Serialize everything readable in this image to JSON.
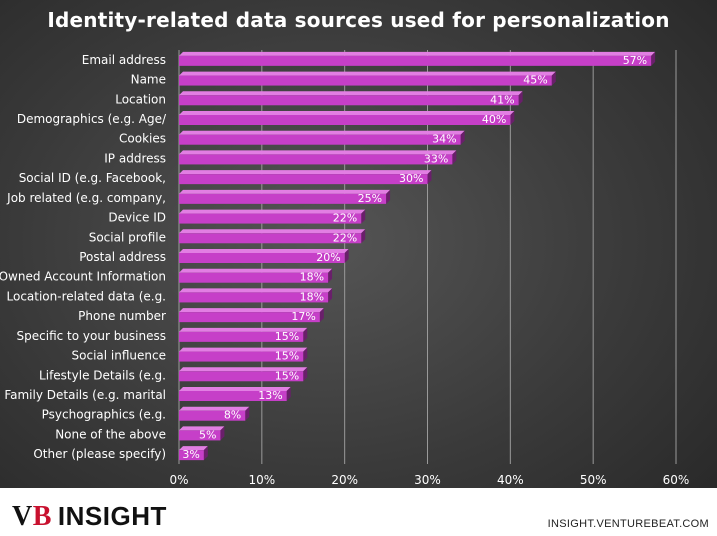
{
  "title": "Identity-related data sources used for personalization",
  "footer": {
    "brand_vb": "V",
    "brand_b": "B",
    "brand_text": "INSIGHT",
    "site": "INSIGHT.VENTUREBEAT.COM"
  },
  "colors": {
    "bar": "#c63fc8",
    "bar_top": "#e27ee3",
    "bar_side": "#6a1f6b",
    "axis_text": "#ffffff",
    "grid": "#9a9a9a"
  },
  "chart_data": {
    "type": "bar",
    "orientation": "horizontal",
    "title": "Identity-related data sources used for personalization",
    "xlabel": "",
    "ylabel": "",
    "xlim": [
      0,
      60
    ],
    "x_ticks": [
      "0%",
      "10%",
      "20%",
      "30%",
      "40%",
      "50%",
      "60%"
    ],
    "grid": true,
    "legend": "none",
    "categories": [
      "Email address",
      "Name",
      "Location",
      "Demographics (e.g. Age/",
      "Cookies",
      "IP address",
      "Social ID (e.g. Facebook,",
      "Job related (e.g. company,",
      "Device ID",
      "Social profile",
      "Postal address",
      "Owned Account Information",
      "Location-related data (e.g.",
      "Phone number",
      "Specific to your business",
      "Social influence",
      "Lifestyle Details (e.g.",
      "Family Details (e.g. marital",
      "Psychographics (e.g.",
      "None of the above",
      "Other (please specify)"
    ],
    "values": [
      57,
      45,
      41,
      40,
      34,
      33,
      30,
      25,
      22,
      22,
      20,
      18,
      18,
      17,
      15,
      15,
      15,
      13,
      8,
      5,
      3
    ],
    "data_labels": [
      "57%",
      "45%",
      "41%",
      "40%",
      "34%",
      "33%",
      "30%",
      "25%",
      "22%",
      "22%",
      "20%",
      "18%",
      "18%",
      "17%",
      "15%",
      "15%",
      "15%",
      "13%",
      "8%",
      "5%",
      "3%"
    ]
  }
}
